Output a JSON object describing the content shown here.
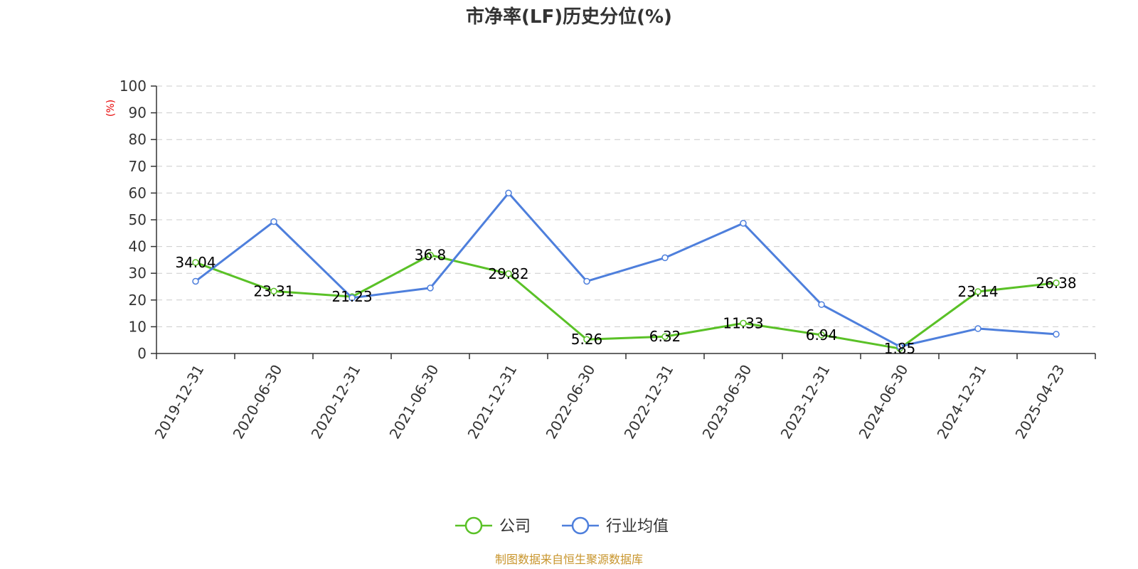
{
  "chart_data": {
    "type": "line",
    "title": "市净率(LF)历史分位(%)",
    "ylabel": "(%)",
    "ylim": [
      0,
      100
    ],
    "yticks": [
      0,
      10,
      20,
      30,
      40,
      50,
      60,
      70,
      80,
      90,
      100
    ],
    "categories": [
      "2019-12-31",
      "2020-06-30",
      "2020-12-31",
      "2021-06-30",
      "2021-12-31",
      "2022-06-30",
      "2022-12-31",
      "2023-06-30",
      "2023-12-31",
      "2024-06-30",
      "2024-12-31",
      "2025-04-23"
    ],
    "grid": true,
    "legend_position": "bottom",
    "series": [
      {
        "name": "公司",
        "color": "#5ac127",
        "values": [
          34.04,
          23.31,
          21.23,
          36.8,
          29.82,
          5.26,
          6.32,
          11.33,
          6.94,
          1.85,
          23.14,
          26.38
        ],
        "labels": [
          "34.04",
          "23.31",
          "21.23",
          "36.8",
          "29.82",
          "5.26",
          "6.32",
          "11.33",
          "6.94",
          "1.85",
          "23.14",
          "26.38"
        ]
      },
      {
        "name": "行业均值",
        "color": "#4e7fdc",
        "values": [
          27,
          49.3,
          20.8,
          24.5,
          60,
          27,
          35.8,
          48.7,
          18.3,
          2.6,
          9.3,
          7.2
        ]
      }
    ]
  },
  "source_note": "制图数据来自恒生聚源数据库"
}
